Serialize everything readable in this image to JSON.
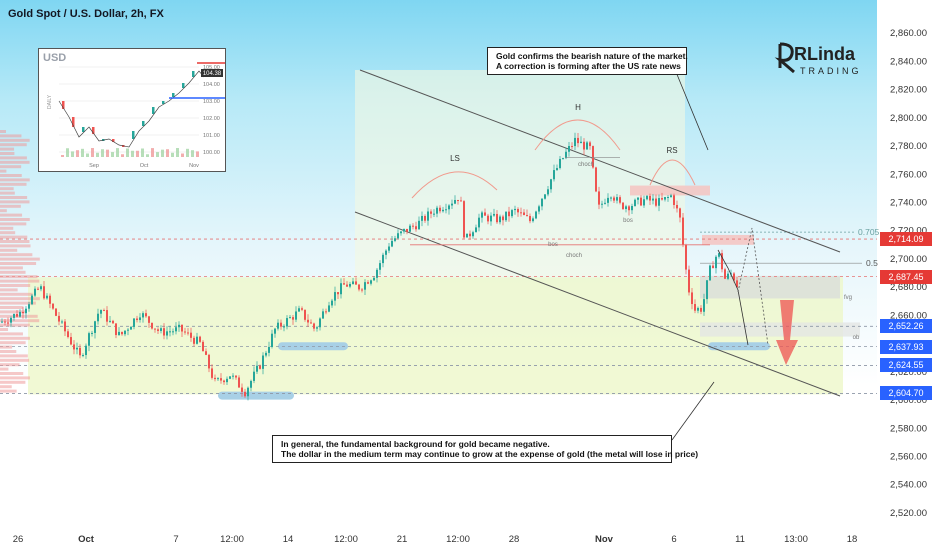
{
  "title": "Gold Spot / U.S. Dollar, 2h, FX",
  "colors": {
    "up": "#26a69a",
    "down": "#ef5350",
    "channel": "#555555",
    "accent_red": "#e53935",
    "accent_blue": "#2962ff"
  },
  "annotations": {
    "top_note": [
      "Gold confirms the bearish nature of the market.",
      "A correction is forming after the US rate news"
    ],
    "bottom_note": [
      "In general, the fundamental background for gold became negative.",
      "The dollar in the medium term may continue to grow at the expense of gold (the metal will lose in price)"
    ],
    "pattern_labels": [
      "LS",
      "H",
      "RS"
    ],
    "small_labels": [
      "choch",
      "choch",
      "bos",
      "bos",
      "fvg",
      "ob"
    ],
    "fib_labels": [
      "0.705",
      "0.5"
    ]
  },
  "logo": {
    "name": "RLinda",
    "sub": "TRADING"
  },
  "inset": {
    "label": "USD",
    "side_label": "DAILY",
    "y_ticks": [
      "105.00",
      "104.00",
      "103.00",
      "102.00",
      "101.00",
      "100.00"
    ],
    "highlight": "104.38",
    "x_ticks": [
      "Sep",
      "Oct",
      "Nov"
    ]
  },
  "price_tags": [
    {
      "value": "2,714.09",
      "color": "#e53935"
    },
    {
      "value": "2,687.45",
      "color": "#e53935"
    },
    {
      "value": "2,652.26",
      "color": "#2962ff"
    },
    {
      "value": "2,637.93",
      "color": "#2962ff"
    },
    {
      "value": "2,624.55",
      "color": "#2962ff"
    },
    {
      "value": "2,604.70",
      "color": "#2962ff"
    }
  ],
  "chart_data": {
    "type": "candlestick",
    "symbol": "XAUUSD",
    "ylim": [
      2515,
      2875
    ],
    "y_ticks": [
      2520,
      2540,
      2560,
      2580,
      2600,
      2620,
      2640,
      2660,
      2680,
      2700,
      2720,
      2740,
      2760,
      2780,
      2800,
      2820,
      2840,
      2860
    ],
    "x_ticks": [
      "26",
      "Oct",
      "7",
      "12:00",
      "14",
      "12:00",
      "21",
      "12:00",
      "28",
      "Nov",
      "6",
      "11",
      "13:00",
      "18"
    ],
    "price_path": [
      [
        0,
        2655
      ],
      [
        20,
        2662
      ],
      [
        40,
        2680
      ],
      [
        60,
        2655
      ],
      [
        80,
        2630
      ],
      [
        100,
        2665
      ],
      [
        120,
        2645
      ],
      [
        140,
        2662
      ],
      [
        160,
        2648
      ],
      [
        180,
        2650
      ],
      [
        200,
        2640
      ],
      [
        215,
        2612
      ],
      [
        230,
        2618
      ],
      [
        245,
        2606
      ],
      [
        260,
        2625
      ],
      [
        275,
        2650
      ],
      [
        290,
        2658
      ],
      [
        300,
        2663
      ],
      [
        315,
        2650
      ],
      [
        330,
        2672
      ],
      [
        345,
        2682
      ],
      [
        360,
        2680
      ],
      [
        375,
        2690
      ],
      [
        390,
        2712
      ],
      [
        405,
        2720
      ],
      [
        420,
        2726
      ],
      [
        435,
        2735
      ],
      [
        450,
        2740
      ],
      [
        460,
        2745
      ],
      [
        465,
        2712
      ],
      [
        480,
        2730
      ],
      [
        500,
        2728
      ],
      [
        515,
        2734
      ],
      [
        530,
        2727
      ],
      [
        545,
        2748
      ],
      [
        555,
        2762
      ],
      [
        565,
        2774
      ],
      [
        575,
        2784
      ],
      [
        590,
        2778
      ],
      [
        598,
        2735
      ],
      [
        610,
        2748
      ],
      [
        620,
        2738
      ],
      [
        630,
        2738
      ],
      [
        645,
        2742
      ],
      [
        660,
        2740
      ],
      [
        672,
        2745
      ],
      [
        680,
        2728
      ],
      [
        688,
        2680
      ],
      [
        695,
        2664
      ],
      [
        702,
        2665
      ],
      [
        710,
        2692
      ],
      [
        718,
        2705
      ],
      [
        725,
        2686
      ],
      [
        732,
        2690
      ],
      [
        738,
        2680
      ]
    ],
    "levels": [
      2714.09,
      2687.45,
      2652.26,
      2637.93,
      2624.55,
      2604.7
    ]
  }
}
